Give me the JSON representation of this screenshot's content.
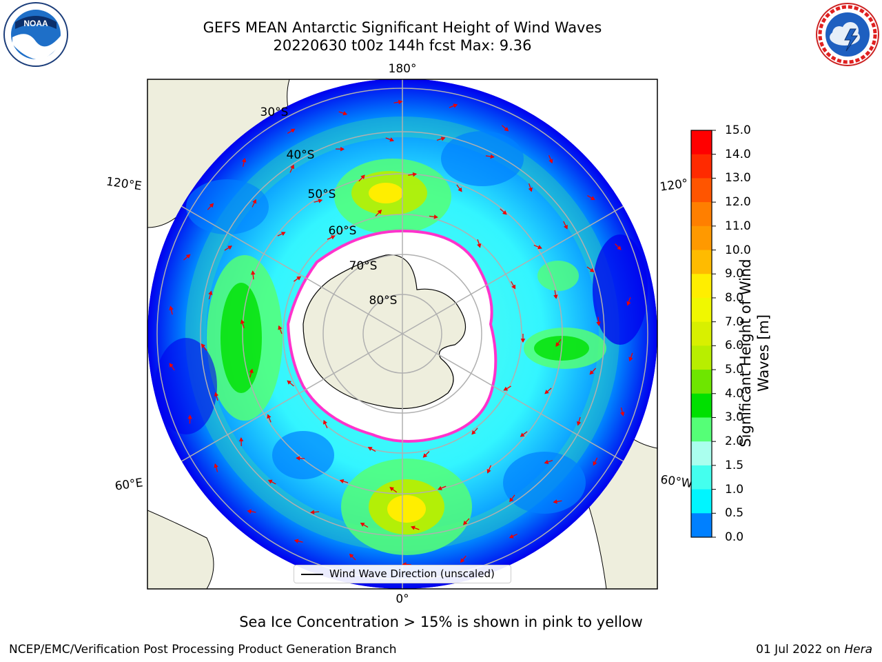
{
  "header": {
    "title_line1": "GEFS MEAN Antarctic Significant Height of Wind Waves",
    "title_line2": "20220630 t00z 144h fcst   Max: 9.36"
  },
  "logos": {
    "left": {
      "icon": "noaa-logo",
      "text": "NOAA"
    },
    "right": {
      "icon": "national-weather-service-logo",
      "text": "NATIONAL WEATHER SERVICE"
    }
  },
  "map": {
    "projection": "south-polar-stereographic",
    "longitude_labels": {
      "top": "180°",
      "bottom": "0°",
      "upper_left": "120°E",
      "lower_left": "60°E",
      "upper_right": "120°",
      "lower_right": "60°W"
    },
    "latitude_labels": [
      "30°S",
      "40°S",
      "50°S",
      "60°S",
      "70°S",
      "80°S"
    ],
    "legend_label": "Wind Wave Direction (unscaled)",
    "colors": {
      "land": "#eeeedd",
      "sea_ice_edge": "#ff33cc",
      "gridline": "#b0b0b0",
      "arrow": "#ee0000"
    }
  },
  "colorbar": {
    "label": "Significant Height of Wind Waves [m]",
    "ticks": [
      "15.0",
      "14.0",
      "13.0",
      "12.0",
      "11.0",
      "10.0",
      "9.0",
      "8.0",
      "7.0",
      "6.0",
      "5.0",
      "4.0",
      "3.0",
      "2.0",
      "1.5",
      "1.0",
      "0.5",
      "0.0"
    ],
    "bin_colors_top_to_bottom": [
      "#ff0000",
      "#ff2a00",
      "#ff5500",
      "#ff7f00",
      "#ff9900",
      "#ffbb00",
      "#ffee00",
      "#f0f800",
      "#d8f000",
      "#b8ee00",
      "#6ee600",
      "#00e000",
      "#55ff77",
      "#aaffee",
      "#44ffee",
      "#00f5ff",
      "#0080ff",
      "#0000ff"
    ]
  },
  "annotation": "Sea Ice Concentration > 15% is shown in pink to yellow",
  "footer": {
    "left": "NCEP/EMC/Verification Post Processing Product Generation Branch",
    "right_prefix": "01 Jul 2022 on ",
    "right_machine": "Hera"
  }
}
